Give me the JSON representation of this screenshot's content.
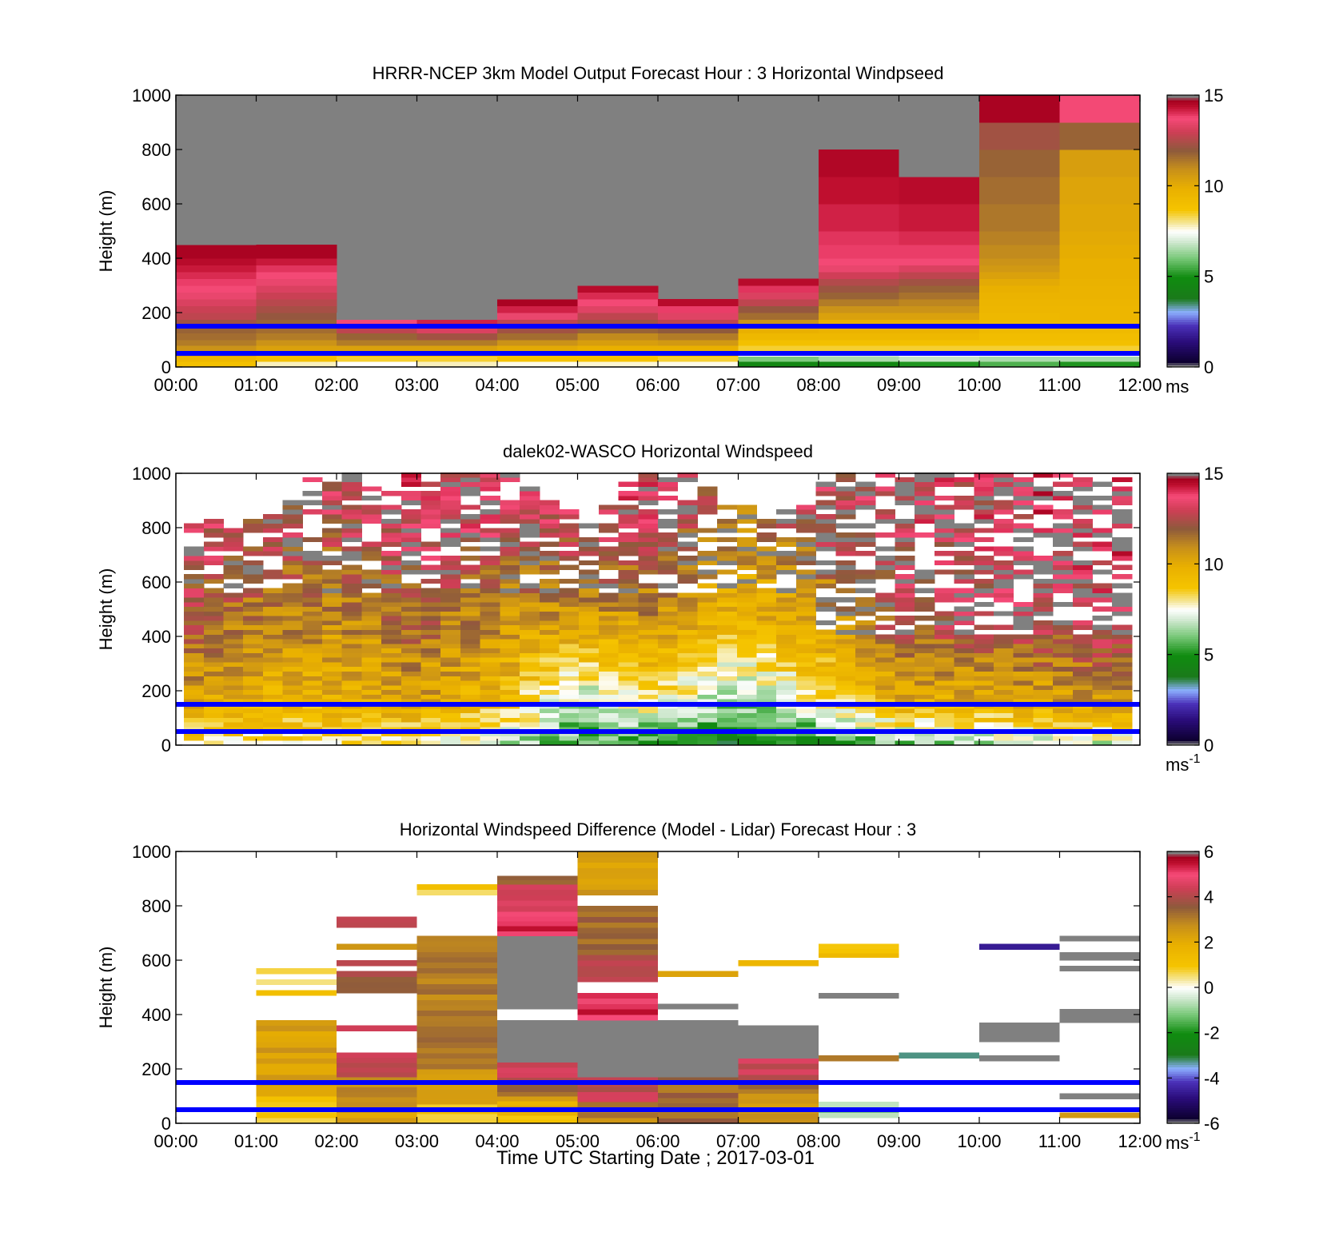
{
  "figure": {
    "xlabel": "Time UTC  Starting Date ; 2017-03-01",
    "ref_lines": {
      "heights_m": [
        50,
        150
      ],
      "color": "#0000ff"
    }
  },
  "chart_data": [
    {
      "type": "heatmap",
      "title": "HRRR-NCEP 3km Model Output   Forecast Hour : 3 Horizontal Windpseed",
      "ylabel": "Height (m)",
      "ylim": [
        0,
        1000
      ],
      "yticks": [
        "0",
        "200",
        "400",
        "600",
        "800",
        "1000"
      ],
      "xticks": [
        "00:00",
        "01:00",
        "02:00",
        "03:00",
        "04:00",
        "05:00",
        "06:00",
        "07:00",
        "08:00",
        "09:00",
        "10:00",
        "11:00",
        "12:00"
      ],
      "clim": [
        0,
        15
      ],
      "cticks": [
        "0",
        "5",
        "10",
        "15"
      ],
      "cbar_unit": "ms",
      "cbar_sup": "",
      "gridded": true,
      "level_edges_m": [
        0,
        20,
        40,
        60,
        80,
        100,
        125,
        150,
        175,
        200,
        225,
        250,
        275,
        300,
        325,
        350,
        375,
        400,
        450,
        500,
        600,
        700,
        800,
        900,
        1000
      ],
      "columns_hours": [
        [
          0,
          1
        ],
        [
          1,
          2
        ],
        [
          2,
          3
        ],
        [
          3,
          4
        ],
        [
          4,
          5
        ],
        [
          5,
          6
        ],
        [
          6,
          7
        ],
        [
          7,
          8
        ],
        [
          8,
          9
        ],
        [
          9,
          10
        ],
        [
          10,
          11
        ],
        [
          11,
          12
        ]
      ],
      "profiles": [
        [
          9.0,
          9.5,
          10.5,
          11.0,
          11.5,
          11.8,
          12.0,
          12.5,
          13.0,
          13.2,
          13.5,
          13.8,
          14.0,
          14.2,
          14.4,
          14.6,
          14.8,
          15.0,
          15.5
        ],
        [
          7.8,
          9.0,
          10.0,
          10.5,
          11.0,
          11.5,
          11.8,
          12.0,
          12.3,
          12.6,
          12.9,
          13.2,
          13.5,
          13.8,
          14.0,
          14.3,
          14.6,
          15.0
        ],
        [
          7.5,
          8.5,
          9.5,
          10.5,
          11.5,
          12.0,
          13.0,
          14.0,
          15.5
        ],
        [
          7.8,
          8.5,
          9.5,
          10.5,
          11.5,
          12.5,
          13.5,
          14.5,
          15.5
        ],
        [
          7.6,
          8.8,
          9.5,
          10.2,
          11.0,
          11.8,
          12.5,
          13.0,
          13.8,
          14.5,
          15.0,
          15.6
        ],
        [
          7.7,
          8.8,
          9.5,
          10.0,
          10.6,
          11.2,
          12.0,
          12.5,
          13.0,
          13.6,
          14.0,
          14.4,
          14.8,
          15.5
        ],
        [
          7.6,
          8.5,
          9.2,
          10.0,
          10.8,
          11.5,
          12.2,
          13.0,
          13.6,
          14.2,
          14.8
        ],
        [
          4.5,
          6.0,
          7.5,
          8.5,
          9.0,
          9.5,
          10.0,
          11.0,
          11.8,
          12.3,
          13.0,
          13.5,
          14.3,
          14.8
        ],
        [
          4.5,
          6.5,
          7.0,
          8.5,
          9.0,
          9.5,
          9.8,
          10.0,
          10.5,
          11.0,
          11.5,
          12.0,
          12.4,
          12.8,
          13.3,
          13.8,
          14.0,
          14.2,
          14.3,
          14.5,
          14.7,
          14.9
        ],
        [
          5.0,
          6.8,
          7.5,
          8.5,
          9.0,
          9.5,
          9.8,
          10.0,
          10.5,
          11.0,
          11.3,
          11.7,
          12.0,
          12.5,
          13.0,
          13.5,
          14.0,
          14.2,
          14.4,
          14.6,
          14.8,
          15.5
        ],
        [
          5.5,
          6.5,
          7.5,
          8.5,
          9.0,
          9.2,
          9.4,
          9.5,
          9.5,
          9.6,
          9.7,
          9.8,
          10.0,
          10.2,
          10.5,
          10.8,
          11.0,
          11.2,
          11.4,
          11.6,
          11.8,
          12.0,
          12.5,
          15.0
        ],
        [
          5.0,
          6.5,
          7.5,
          8.5,
          9.0,
          9.2,
          9.4,
          9.5,
          9.6,
          9.6,
          9.7,
          9.8,
          9.8,
          9.9,
          10.0,
          10.0,
          10.0,
          10.1,
          10.2,
          10.3,
          10.4,
          10.6,
          12.0,
          14.0
        ]
      ]
    },
    {
      "type": "heatmap",
      "title": "dalek02-WASCO  Horizontal Windspeed",
      "ylabel": "Height (m)",
      "ylim": [
        0,
        1000
      ],
      "yticks": [
        "0",
        "200",
        "400",
        "600",
        "800",
        "1000"
      ],
      "xticks": [
        "",
        "",
        "",
        "",
        "",
        "",
        "",
        "",
        "",
        "",
        "",
        "",
        ""
      ],
      "clim": [
        0,
        15
      ],
      "cticks": [
        "0",
        "5",
        "10",
        "15"
      ],
      "cbar_unit": "ms",
      "cbar_sup": "-1",
      "gridded": false,
      "time_range_hours": [
        0.1,
        11.9
      ],
      "bin_count": 48,
      "range_gate_m": 17,
      "coverage_top_m": [
        800,
        820,
        790,
        830,
        850,
        900,
        980,
        960,
        1000,
        950,
        930,
        990,
        960,
        1000,
        1000,
        1000,
        1000,
        950,
        900,
        860,
        830,
        880,
        960,
        1000,
        990,
        1000,
        950,
        900,
        880,
        850,
        860,
        880,
        960,
        990,
        1000,
        1000,
        980,
        1000,
        1000,
        990,
        1000,
        1000,
        980,
        1000,
        1000,
        990,
        1000,
        980
      ],
      "nodata_fraction_aloft": 0.35,
      "missing_fraction_aloft": 0.25,
      "speed_anchors": {
        "hours": [
          0,
          1,
          2,
          3,
          4,
          5,
          6,
          7,
          8,
          9,
          10,
          11,
          12
        ],
        "surface_ms": [
          8.5,
          8.0,
          8.2,
          8.0,
          6.5,
          5.5,
          5.0,
          4.0,
          5.0,
          6.0,
          6.5,
          7.0,
          7.0
        ],
        "low_ms": [
          10.5,
          9.8,
          9.8,
          10.5,
          9.5,
          6.5,
          8.0,
          6.0,
          8.0,
          10.0,
          10.0,
          10.5,
          11.0
        ],
        "mid_ms": [
          12.5,
          11.5,
          11.0,
          12.0,
          11.0,
          10.5,
          11.0,
          9.5,
          10.5,
          12.5,
          13.0,
          13.0,
          13.5
        ],
        "upper_ms": [
          14.0,
          13.0,
          13.0,
          14.0,
          13.5,
          13.5,
          13.5,
          11.5,
          13.0,
          13.5,
          13.5,
          14.0,
          14.0
        ]
      }
    },
    {
      "type": "heatmap",
      "title": "Horizontal Windspeed Difference (Model - Lidar) Forecast Hour : 3",
      "ylabel": "Height (m)",
      "ylim": [
        0,
        1000
      ],
      "yticks": [
        "0",
        "200",
        "400",
        "600",
        "800",
        "1000"
      ],
      "xticks": [
        "00:00",
        "01:00",
        "02:00",
        "03:00",
        "04:00",
        "05:00",
        "06:00",
        "07:00",
        "08:00",
        "09:00",
        "10:00",
        "11:00",
        "12:00"
      ],
      "clim": [
        -6,
        6
      ],
      "cticks": [
        "-6",
        "-4",
        "-2",
        "0",
        "2",
        "4",
        "6"
      ],
      "cbar_unit": "ms",
      "cbar_sup": "-1",
      "gridded": false,
      "segments": [
        {
          "t": [
            1,
            2
          ],
          "z": [
            0,
            100
          ],
          "v": 1.0
        },
        {
          "t": [
            1,
            2
          ],
          "z": [
            100,
            380
          ],
          "v": 2.5
        },
        {
          "t": [
            1,
            2
          ],
          "z": [
            470,
            490
          ],
          "v": 1.6
        },
        {
          "t": [
            1,
            2
          ],
          "z": [
            510,
            530
          ],
          "v": 0.8
        },
        {
          "t": [
            1,
            2
          ],
          "z": [
            550,
            570
          ],
          "v": 0.5
        },
        {
          "t": [
            2,
            3
          ],
          "z": [
            0,
            60
          ],
          "v": 2.5
        },
        {
          "t": [
            2,
            3
          ],
          "z": [
            60,
            170
          ],
          "v": 3.0
        },
        {
          "t": [
            2,
            3
          ],
          "z": [
            170,
            260
          ],
          "v": 4.5
        },
        {
          "t": [
            2,
            3
          ],
          "z": [
            340,
            360
          ],
          "v": 5.0
        },
        {
          "t": [
            2,
            3
          ],
          "z": [
            480,
            560
          ],
          "v": 4.0
        },
        {
          "t": [
            2,
            3
          ],
          "z": [
            580,
            600
          ],
          "v": 4.5
        },
        {
          "t": [
            2,
            3
          ],
          "z": [
            640,
            660
          ],
          "v": 3.0
        },
        {
          "t": [
            2,
            3
          ],
          "z": [
            720,
            760
          ],
          "v": 4.5
        },
        {
          "t": [
            3,
            4
          ],
          "z": [
            0,
            70
          ],
          "v": 1.0
        },
        {
          "t": [
            3,
            4
          ],
          "z": [
            70,
            200
          ],
          "v": 2.5
        },
        {
          "t": [
            3,
            4
          ],
          "z": [
            200,
            690
          ],
          "v": 3.2
        },
        {
          "t": [
            3,
            4
          ],
          "z": [
            840,
            860
          ],
          "v": 0.3
        },
        {
          "t": [
            3,
            4
          ],
          "z": [
            860,
            880
          ],
          "v": 1.2
        },
        {
          "t": [
            4,
            5
          ],
          "z": [
            0,
            30
          ],
          "v": 1.0
        },
        {
          "t": [
            4,
            5
          ],
          "z": [
            30,
            100
          ],
          "v": 2.2
        },
        {
          "t": [
            4,
            5
          ],
          "z": [
            100,
            150
          ],
          "v": 3.5
        },
        {
          "t": [
            4,
            5
          ],
          "z": [
            150,
            225
          ],
          "v": 4.5
        },
        {
          "t": [
            4,
            5
          ],
          "z": [
            225,
            380
          ],
          "v": 7.0
        },
        {
          "t": [
            4,
            5
          ],
          "z": [
            420,
            690
          ],
          "v": 7.0
        },
        {
          "t": [
            4,
            5
          ],
          "z": [
            690,
            780
          ],
          "v": 5.5
        },
        {
          "t": [
            4,
            5
          ],
          "z": [
            780,
            880
          ],
          "v": 4.6
        },
        {
          "t": [
            4,
            5
          ],
          "z": [
            880,
            910
          ],
          "v": 3.5
        },
        {
          "t": [
            5,
            6
          ],
          "z": [
            0,
            80
          ],
          "v": 3.0
        },
        {
          "t": [
            5,
            6
          ],
          "z": [
            80,
            170
          ],
          "v": 4.5
        },
        {
          "t": [
            5,
            6
          ],
          "z": [
            170,
            380
          ],
          "v": 7.0
        },
        {
          "t": [
            5,
            6
          ],
          "z": [
            380,
            480
          ],
          "v": 5.5
        },
        {
          "t": [
            5,
            6
          ],
          "z": [
            520,
            620
          ],
          "v": 4.5
        },
        {
          "t": [
            5,
            6
          ],
          "z": [
            620,
            800
          ],
          "v": 3.5
        },
        {
          "t": [
            5,
            6
          ],
          "z": [
            840,
            1000
          ],
          "v": 2.5
        },
        {
          "t": [
            6,
            7
          ],
          "z": [
            0,
            170
          ],
          "v": 3.5
        },
        {
          "t": [
            6,
            7
          ],
          "z": [
            170,
            380
          ],
          "v": 7.0
        },
        {
          "t": [
            6,
            7
          ],
          "z": [
            420,
            440
          ],
          "v": 7.0
        },
        {
          "t": [
            6,
            7
          ],
          "z": [
            540,
            560
          ],
          "v": 2.5
        },
        {
          "t": [
            7,
            8
          ],
          "z": [
            0,
            110
          ],
          "v": 2.8
        },
        {
          "t": [
            7,
            8
          ],
          "z": [
            110,
            160
          ],
          "v": 3.5
        },
        {
          "t": [
            7,
            8
          ],
          "z": [
            160,
            240
          ],
          "v": 4.5
        },
        {
          "t": [
            7,
            8
          ],
          "z": [
            240,
            360
          ],
          "v": 7.0
        },
        {
          "t": [
            7,
            8
          ],
          "z": [
            580,
            600
          ],
          "v": 2.0
        },
        {
          "t": [
            8,
            9
          ],
          "z": [
            20,
            80
          ],
          "v": -1.0
        },
        {
          "t": [
            8,
            9
          ],
          "z": [
            230,
            250
          ],
          "v": 3.0
        },
        {
          "t": [
            8,
            9
          ],
          "z": [
            460,
            480
          ],
          "v": 7.0
        },
        {
          "t": [
            8,
            9
          ],
          "z": [
            610,
            660
          ],
          "v": 1.3
        },
        {
          "t": [
            9,
            10
          ],
          "z": [
            240,
            260
          ],
          "v": -3.5
        },
        {
          "t": [
            10,
            11
          ],
          "z": [
            230,
            250
          ],
          "v": 7.0
        },
        {
          "t": [
            10,
            11
          ],
          "z": [
            300,
            370
          ],
          "v": 7.0
        },
        {
          "t": [
            10,
            11
          ],
          "z": [
            640,
            660
          ],
          "v": -4.5
        },
        {
          "t": [
            11,
            12
          ],
          "z": [
            20,
            40
          ],
          "v": 3.0
        },
        {
          "t": [
            11,
            12
          ],
          "z": [
            90,
            110
          ],
          "v": 7.0
        },
        {
          "t": [
            11,
            12
          ],
          "z": [
            370,
            420
          ],
          "v": 7.0
        },
        {
          "t": [
            11,
            12
          ],
          "z": [
            560,
            580
          ],
          "v": 7.0
        },
        {
          "t": [
            11,
            12
          ],
          "z": [
            600,
            630
          ],
          "v": 7.0
        },
        {
          "t": [
            11,
            12
          ],
          "z": [
            670,
            690
          ],
          "v": 7.0
        }
      ]
    }
  ]
}
